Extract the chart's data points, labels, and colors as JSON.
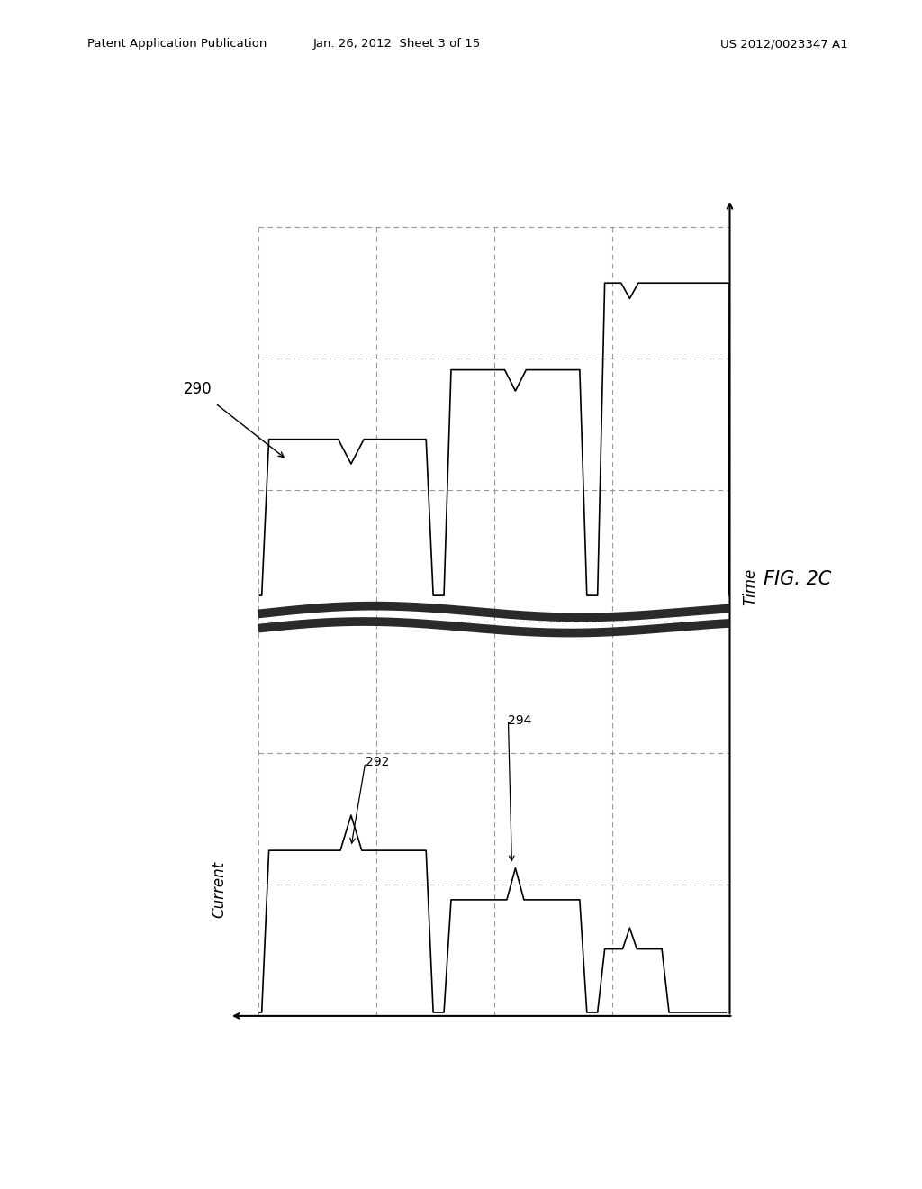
{
  "header_left": "Patent Application Publication",
  "header_mid": "Jan. 26, 2012  Sheet 3 of 15",
  "header_right": "US 2012/0023347 A1",
  "fig_label": "FIG. 2C",
  "diagram_label": "290",
  "label_292": "292",
  "label_294": "294",
  "x_axis_label": "Current",
  "y_axis_label": "Time",
  "bg_color": "#ffffff",
  "line_color": "#000000",
  "grid_color": "#999999"
}
